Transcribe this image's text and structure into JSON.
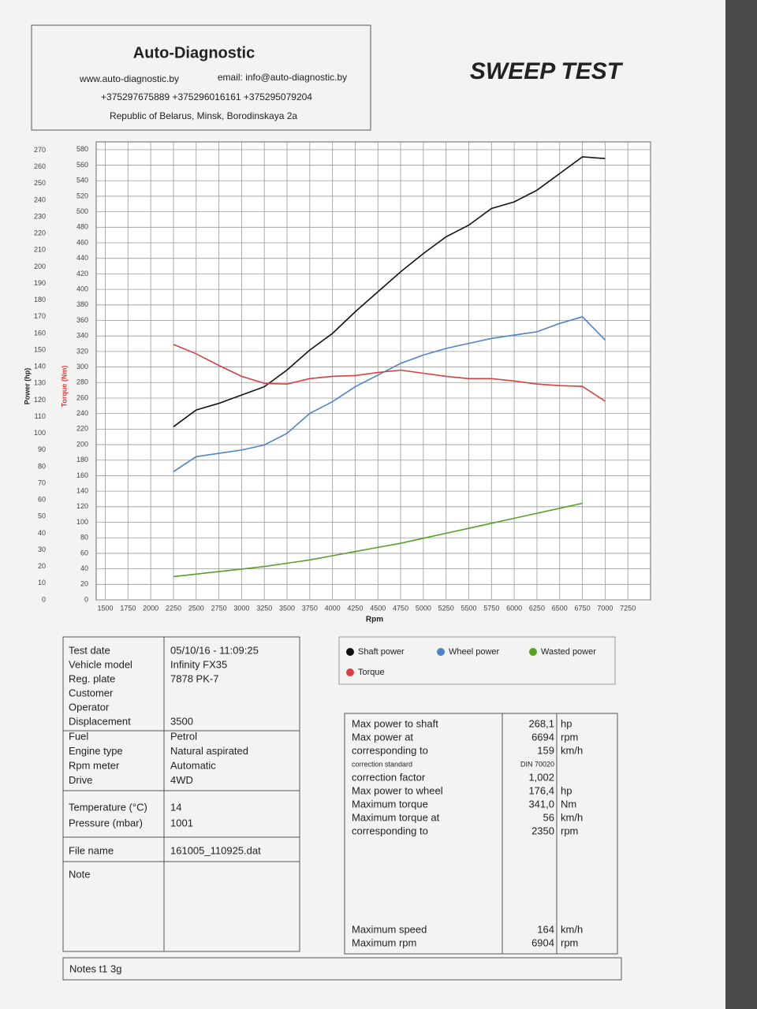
{
  "header": {
    "company": "Auto-Diagnostic",
    "web": "www.auto-diagnostic.by",
    "email": "email: info@auto-diagnostic.by",
    "phones": "+375297675889  +375296016161  +375295079204",
    "address": "Republic of Belarus, Minsk, Borodinskaya 2a"
  },
  "title": "SWEEP TEST",
  "chart_data": {
    "type": "line",
    "xlabel": "Rpm",
    "ylabel": "Power (hp)",
    "y2label": "Torque (Nm)",
    "grid": true,
    "x": [
      2250,
      2500,
      2750,
      3000,
      3250,
      3500,
      3750,
      4000,
      4250,
      4500,
      4750,
      5000,
      5250,
      5500,
      5750,
      6000,
      6250,
      6500,
      6750,
      7000
    ],
    "series": [
      {
        "name": "Shaft power",
        "color": "#111111",
        "axis": "y",
        "values": [
          104,
          114,
          118,
          123,
          128,
          138,
          150,
          160,
          173,
          185,
          197,
          208,
          218,
          225,
          235,
          239,
          246,
          256,
          266,
          265
        ]
      },
      {
        "name": "Wheel power",
        "color": "#4f84c4",
        "axis": "y",
        "values": [
          77,
          86,
          88,
          90,
          93,
          100,
          112,
          119,
          128,
          135,
          142,
          147,
          151,
          154,
          157,
          159,
          161,
          166,
          170,
          156
        ]
      },
      {
        "name": "Wasted power",
        "color": "#5a9e2a",
        "axis": "y",
        "values": [
          14,
          15.5,
          17,
          18.5,
          20,
          22,
          24,
          26.5,
          29,
          31.5,
          34,
          37,
          40,
          43,
          46,
          49,
          52,
          55,
          58,
          null
        ]
      },
      {
        "name": "Torque",
        "color": "#d94040",
        "axis": "y2",
        "values": [
          329,
          317,
          302,
          288,
          279,
          278,
          285,
          288,
          289,
          293,
          296,
          292,
          288,
          285,
          285,
          282,
          278,
          276,
          275,
          256
        ]
      }
    ],
    "xlim": [
      1400,
      7500
    ],
    "xticks": [
      1500,
      1750,
      2000,
      2250,
      2500,
      2750,
      3000,
      3250,
      3500,
      3750,
      4000,
      4250,
      4500,
      4750,
      5000,
      5250,
      5500,
      5750,
      6000,
      6250,
      6500,
      6750,
      7000,
      7250
    ],
    "ylim": [
      0,
      275
    ],
    "yticks": [
      0,
      10,
      20,
      30,
      40,
      50,
      60,
      70,
      80,
      90,
      100,
      110,
      120,
      130,
      140,
      150,
      160,
      170,
      180,
      190,
      200,
      210,
      220,
      230,
      240,
      250,
      260,
      270
    ],
    "y2lim": [
      0,
      590
    ],
    "y2ticks": [
      0,
      20,
      40,
      60,
      80,
      100,
      120,
      140,
      160,
      180,
      200,
      220,
      240,
      260,
      280,
      300,
      320,
      340,
      360,
      380,
      400,
      420,
      440,
      460,
      480,
      500,
      520,
      540,
      560,
      580
    ]
  },
  "info": [
    [
      {
        "label": "Test date",
        "value": "05/10/16 - 11:09:25"
      },
      {
        "label": "Vehicle model",
        "value": "Infinity FX35"
      },
      {
        "label": "Reg. plate",
        "value": "7878 PK-7"
      },
      {
        "label": "Customer"
      },
      {
        "label": "Operator"
      },
      {
        "label": "Displacement",
        "value": "3500"
      }
    ],
    [
      {
        "label": "Fuel",
        "value": "Petrol"
      },
      {
        "label": "Engine type",
        "value": "Natural aspirated"
      },
      {
        "label": "Rpm meter",
        "value": "Automatic"
      },
      {
        "label": "Drive",
        "value": "4WD"
      }
    ],
    [
      {
        "label": "Temperature (°C)",
        "value": "14"
      },
      {
        "label": "Pressure (mbar)",
        "value": "1001"
      }
    ],
    [
      {
        "label": "File name",
        "value": "161005_110925.dat"
      }
    ],
    [
      {
        "label": "Note"
      }
    ]
  ],
  "results": [
    [
      {
        "label": "Max power to shaft",
        "value": "268,1",
        "unit": "hp"
      },
      {
        "label": "Max power at",
        "value": "6694",
        "unit": "rpm"
      },
      {
        "label": "corresponding to",
        "value": "159",
        "unit": "km/h"
      },
      {
        "label": "correction standard",
        "value": "DIN 70020"
      },
      {
        "label": "correction factor",
        "value": "1,002"
      },
      {
        "label": "Max power to wheel",
        "value": "176,4",
        "unit": "hp"
      },
      {
        "label": "Maximum torque",
        "value": "341,0",
        "unit": "Nm"
      },
      {
        "label": "Maximum torque at",
        "value": "56",
        "unit": "km/h"
      },
      {
        "label": "corresponding to",
        "value": "2350",
        "unit": "rpm"
      }
    ],
    [
      {
        "label": "Maximum speed",
        "value": "164",
        "unit": "km/h"
      },
      {
        "label": "Maximum rpm",
        "value": "6904",
        "unit": "rpm"
      }
    ]
  ],
  "notes": "Notes  t1 3g"
}
